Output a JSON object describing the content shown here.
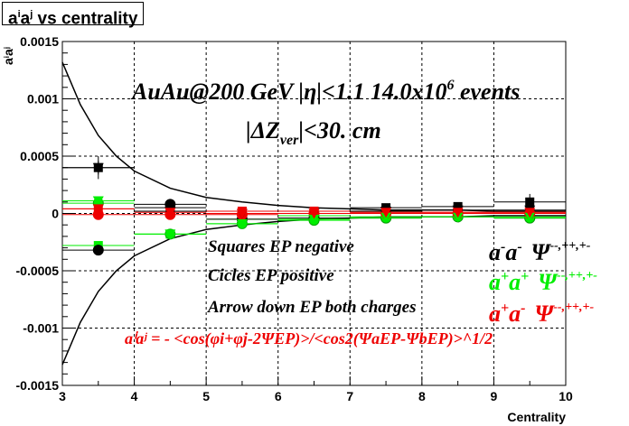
{
  "title_parts": {
    "a1": "a",
    "s1": "i",
    "a2": "a",
    "s2": "j",
    "rest": " vs centrality"
  },
  "chart_data": {
    "type": "scatter",
    "xlabel": "Centrality",
    "ylabel_parts": {
      "a1": "a",
      "s1": "i",
      "a2": "a",
      "s2": "j"
    },
    "xlim": [
      3,
      10
    ],
    "ylim": [
      -0.0015,
      0.0015
    ],
    "x_ticks": [
      "3",
      "4",
      "5",
      "6",
      "7",
      "8",
      "9",
      "10"
    ],
    "y_ticks": [
      "-0.0015",
      "-0.001",
      "-0.0005",
      "0",
      "0.0005",
      "0.001",
      "0.0015"
    ],
    "grid": true,
    "annotations": {
      "line1_main": "AuAu@200 GeV |η|<1.1 14.0x10",
      "line1_sup": "6",
      "line1_end": " events",
      "line2_a": "|ΔZ",
      "line2_sub": "ver",
      "line2_b": "|<30. cm",
      "legend1": "Squares EP negative",
      "legend2": "Cicles EP positive",
      "legend3": "Arrow down EP both charges",
      "formula": "aⁱaʲ = - <cos(φi+φj-2ΨEP)>/<cos2(ΨaEP-ΨbEP)>^1/2"
    },
    "charge_labels": [
      {
        "main": "a",
        "sup1": "-",
        "mid": "a",
        "sup2": "-",
        "psi": "Ψ",
        "tail": "--,++,+-",
        "color": "#000000"
      },
      {
        "main": "a",
        "sup1": "+",
        "mid": "a",
        "sup2": "+",
        "psi": "Ψ",
        "tail": "--,++,+-",
        "color": "#00ee00"
      },
      {
        "main": "a",
        "sup1": "+",
        "mid": "a",
        "sup2": "-",
        "psi": "Ψ",
        "tail": "--,++,+-",
        "color": "#ee0000"
      }
    ],
    "envelope": {
      "x": [
        3.0,
        3.25,
        3.5,
        3.75,
        4.0,
        4.5,
        5.0,
        5.5,
        6.0,
        6.5,
        7.0,
        7.5,
        8.0,
        8.5,
        9.0,
        9.5,
        10.0
      ],
      "y": [
        0.00132,
        0.00095,
        0.00068,
        0.0005,
        0.00037,
        0.00022,
        0.00014,
        0.0001,
        7e-05,
        5e-05,
        4e-05,
        3e-05,
        3e-05,
        3e-05,
        2e-05,
        2e-05,
        2e-05
      ]
    },
    "series": [
      {
        "name": "black squares",
        "marker": "square",
        "color": "#000000",
        "x": [
          3.5,
          4.5,
          5.5,
          6.5,
          7.5,
          8.5,
          9.5
        ],
        "y": [
          0.0004,
          5e-05,
          0.0,
          2e-05,
          5e-05,
          6e-05,
          0.0001
        ],
        "err": [
          0.0001,
          4e-05,
          3e-05,
          2e-05,
          2e-05,
          3e-05,
          7e-05
        ]
      },
      {
        "name": "green squares",
        "marker": "square",
        "color": "#00ee00",
        "x": [
          3.5,
          4.5,
          5.5,
          6.5,
          7.5,
          8.5,
          9.5
        ],
        "y": [
          -0.00028,
          -0.00018,
          -5e-05,
          -2e-05,
          0.0,
          0.0,
          0.0
        ],
        "err": [
          3e-05,
          2e-05,
          1e-05,
          1e-05,
          1e-05,
          1e-05,
          1e-05
        ]
      },
      {
        "name": "red squares",
        "marker": "square",
        "color": "#ee0000",
        "x": [
          3.5,
          4.5,
          5.5,
          6.5,
          7.5,
          8.5,
          9.5
        ],
        "y": [
          4e-05,
          2e-05,
          2e-05,
          2e-05,
          1e-05,
          1e-05,
          1e-05
        ],
        "err": [
          3e-05,
          2e-05,
          1e-05,
          1e-05,
          1e-05,
          1e-05,
          1e-05
        ]
      },
      {
        "name": "black circles",
        "marker": "circle",
        "color": "#000000",
        "x": [
          3.5,
          4.5,
          5.5,
          6.5,
          7.5,
          8.5,
          9.5
        ],
        "y": [
          -0.00032,
          8e-05,
          -5e-05,
          -4e-05,
          -4e-05,
          -3e-05,
          -4e-05
        ],
        "err": [
          4e-05,
          3e-05,
          2e-05,
          2e-05,
          2e-05,
          2e-05,
          2e-05
        ]
      },
      {
        "name": "green circles",
        "marker": "circle",
        "color": "#00ee00",
        "x": [
          3.5,
          4.5,
          5.5,
          6.5,
          7.5,
          8.5,
          9.5
        ],
        "y": [
          9e-05,
          -0.00018,
          -9e-05,
          -6e-05,
          -4e-05,
          -3e-05,
          -4e-05
        ],
        "err": [
          4e-05,
          2e-05,
          2e-05,
          1e-05,
          1e-05,
          1e-05,
          1e-05
        ]
      },
      {
        "name": "red circles",
        "marker": "circle",
        "color": "#ee0000",
        "x": [
          3.5,
          4.5,
          5.5,
          6.5,
          7.5,
          8.5,
          9.5
        ],
        "y": [
          -1e-05,
          -1e-05,
          -1e-05,
          0.0,
          0.0,
          0.0,
          0.0
        ],
        "err": [
          2e-05,
          1e-05,
          1e-05,
          1e-05,
          1e-05,
          1e-05,
          1e-05
        ]
      },
      {
        "name": "black arrows",
        "marker": "triangle-down",
        "color": "#000000",
        "x": [
          3.5,
          4.5,
          5.5,
          6.5,
          7.5,
          8.5,
          9.5
        ],
        "y": [
          0.0004,
          2e-05,
          0.0,
          0.0,
          2e-05,
          3e-05,
          3e-05
        ],
        "err": [
          6e-05,
          3e-05,
          2e-05,
          2e-05,
          2e-05,
          2e-05,
          3e-05
        ]
      },
      {
        "name": "green arrows",
        "marker": "triangle-down",
        "color": "#00ee00",
        "x": [
          3.5,
          4.5,
          5.5,
          6.5,
          7.5,
          8.5,
          9.5
        ],
        "y": [
          0.00011,
          -0.00018,
          -9e-05,
          -5e-05,
          -3e-05,
          -3e-05,
          -3e-05
        ],
        "err": [
          3e-05,
          2e-05,
          2e-05,
          1e-05,
          1e-05,
          1e-05,
          1e-05
        ]
      },
      {
        "name": "red arrows",
        "marker": "triangle-down",
        "color": "#ee0000",
        "x": [
          3.5,
          4.5,
          5.5,
          6.5,
          7.5,
          8.5,
          9.5
        ],
        "y": [
          4e-05,
          1e-05,
          0.0,
          0.0,
          1e-05,
          1e-05,
          1e-05
        ],
        "err": [
          2e-05,
          1e-05,
          1e-05,
          1e-05,
          1e-05,
          1e-05,
          1e-05
        ]
      }
    ]
  }
}
